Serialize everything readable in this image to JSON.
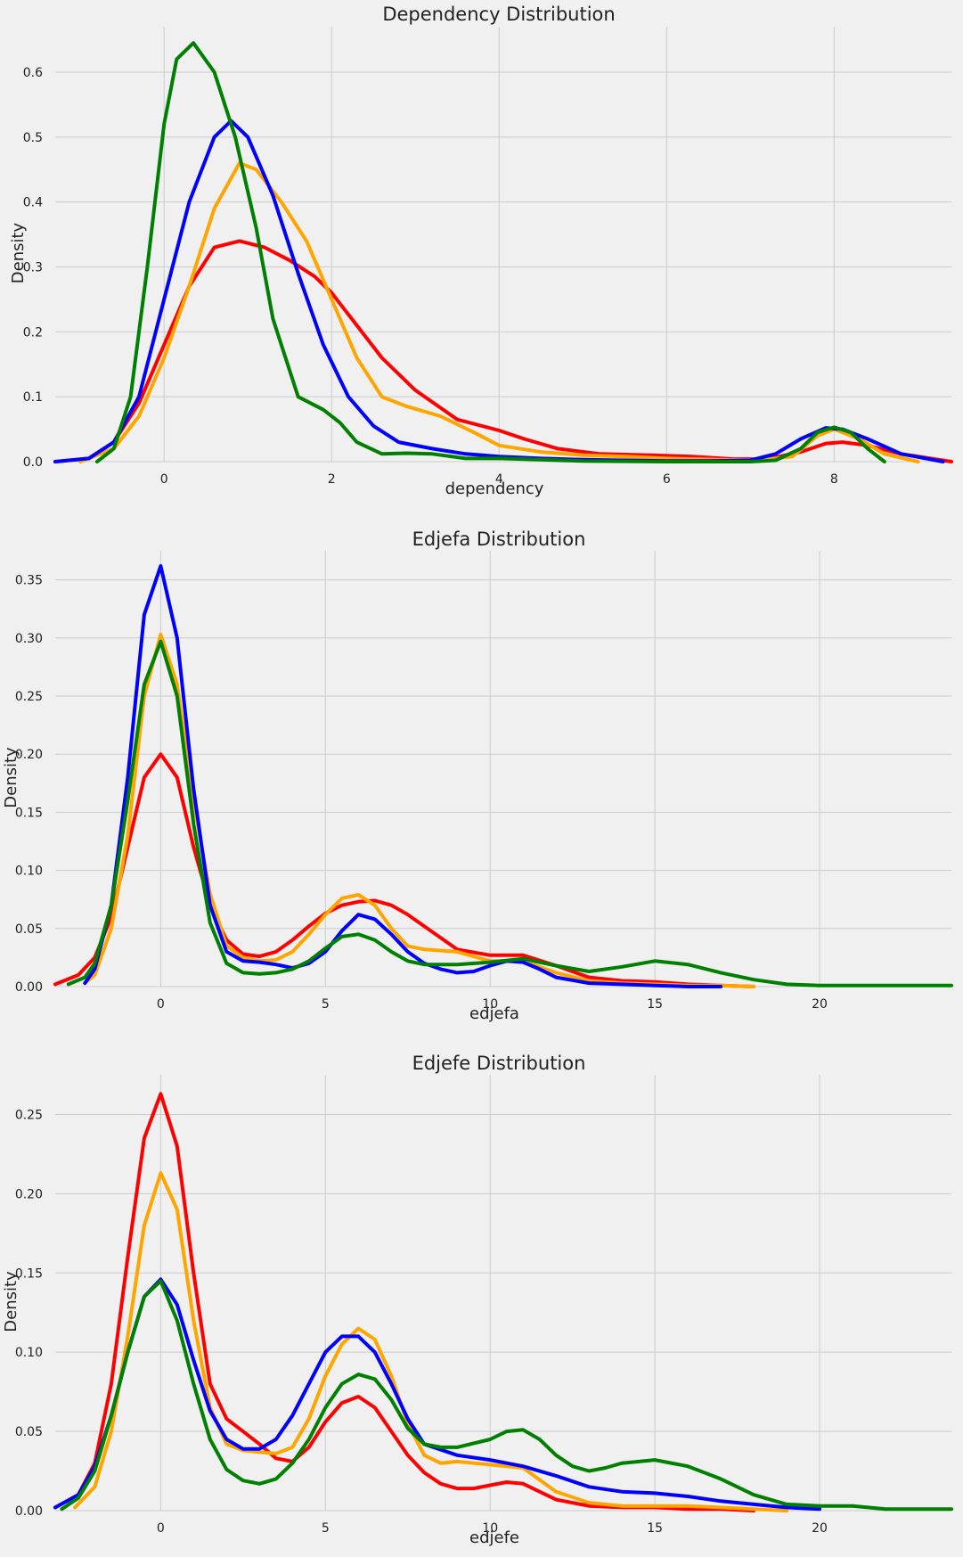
{
  "chart_data": [
    {
      "type": "line",
      "title": "Dependency Distribution",
      "xlabel": "dependency",
      "ylabel": "Density",
      "xlim": [
        -1.3,
        9.4
      ],
      "ylim": [
        0,
        0.67
      ],
      "xticks": [
        0,
        2,
        4,
        6,
        8
      ],
      "yticks": [
        0.0,
        0.1,
        0.2,
        0.3,
        0.4,
        0.5,
        0.6
      ],
      "ytick_labels": [
        "0.0",
        "0.1",
        "0.2",
        "0.3",
        "0.4",
        "0.5",
        "0.6"
      ],
      "grid": true,
      "series": [
        {
          "color": "#ff0000",
          "x": [
            -1.3,
            -0.9,
            -0.6,
            -0.3,
            0,
            0.3,
            0.6,
            0.9,
            1.2,
            1.5,
            1.8,
            2.0,
            2.3,
            2.6,
            3.0,
            3.5,
            4.0,
            4.3,
            4.7,
            5.2,
            5.8,
            6.3,
            6.8,
            7.2,
            7.6,
            7.9,
            8.1,
            8.4,
            8.8,
            9.4
          ],
          "y": [
            0,
            0.005,
            0.03,
            0.09,
            0.18,
            0.27,
            0.33,
            0.34,
            0.33,
            0.31,
            0.285,
            0.26,
            0.21,
            0.16,
            0.11,
            0.065,
            0.048,
            0.035,
            0.02,
            0.012,
            0.01,
            0.008,
            0.004,
            0.004,
            0.015,
            0.028,
            0.03,
            0.025,
            0.012,
            0
          ]
        },
        {
          "color": "#ffa500",
          "x": [
            -1.0,
            -0.6,
            -0.3,
            0,
            0.3,
            0.6,
            0.9,
            1.1,
            1.4,
            1.7,
            2.0,
            2.3,
            2.6,
            2.9,
            3.3,
            3.7,
            4.0,
            4.5,
            5.0,
            5.5,
            6.0,
            6.6,
            7.1,
            7.5,
            7.8,
            8.0,
            8.3,
            8.6,
            9.0
          ],
          "y": [
            0,
            0.02,
            0.07,
            0.16,
            0.27,
            0.39,
            0.46,
            0.45,
            0.4,
            0.34,
            0.25,
            0.16,
            0.1,
            0.085,
            0.07,
            0.045,
            0.025,
            0.015,
            0.01,
            0.008,
            0.005,
            0.003,
            0.002,
            0.008,
            0.04,
            0.05,
            0.035,
            0.012,
            0
          ]
        },
        {
          "color": "#0000ff",
          "x": [
            -1.3,
            -0.9,
            -0.6,
            -0.3,
            0,
            0.3,
            0.6,
            0.8,
            1.0,
            1.3,
            1.6,
            1.9,
            2.2,
            2.5,
            2.8,
            3.2,
            3.6,
            4.0,
            4.5,
            5.0,
            5.5,
            6.0,
            6.5,
            7.0,
            7.3,
            7.6,
            7.9,
            8.1,
            8.4,
            8.8,
            9.3
          ],
          "y": [
            0,
            0.005,
            0.03,
            0.1,
            0.25,
            0.4,
            0.5,
            0.525,
            0.5,
            0.41,
            0.29,
            0.18,
            0.1,
            0.055,
            0.03,
            0.02,
            0.012,
            0.008,
            0.005,
            0.003,
            0.002,
            0.001,
            0.001,
            0.002,
            0.012,
            0.035,
            0.052,
            0.05,
            0.035,
            0.012,
            0
          ]
        },
        {
          "color": "#008000",
          "x": [
            -0.8,
            -0.6,
            -0.4,
            -0.2,
            0,
            0.15,
            0.35,
            0.6,
            0.85,
            1.1,
            1.3,
            1.6,
            1.9,
            2.1,
            2.3,
            2.6,
            2.9,
            3.2,
            3.6,
            4.0,
            4.5,
            5.0,
            6.0,
            6.5,
            7.0,
            7.3,
            7.6,
            7.8,
            8.0,
            8.2,
            8.4,
            8.6
          ],
          "y": [
            0,
            0.02,
            0.1,
            0.3,
            0.52,
            0.62,
            0.645,
            0.6,
            0.5,
            0.36,
            0.22,
            0.1,
            0.08,
            0.06,
            0.03,
            0.012,
            0.013,
            0.012,
            0.005,
            0.005,
            0.003,
            0.001,
            0,
            0,
            0,
            0.002,
            0.02,
            0.045,
            0.053,
            0.045,
            0.02,
            0
          ]
        }
      ]
    },
    {
      "type": "line",
      "title": "Edjefa Distribution",
      "xlabel": "edjefa",
      "ylabel": "Density",
      "xlim": [
        -3.2,
        24
      ],
      "ylim": [
        0,
        0.375
      ],
      "xticks": [
        0,
        5,
        10,
        15,
        20,
        25
      ],
      "yticks": [
        0.0,
        0.05,
        0.1,
        0.15,
        0.2,
        0.25,
        0.3,
        0.35
      ],
      "ytick_labels": [
        "0.00",
        "0.05",
        "0.10",
        "0.15",
        "0.20",
        "0.25",
        "0.30",
        "0.35"
      ],
      "grid": true,
      "series": [
        {
          "color": "#ff0000",
          "x": [
            -3.2,
            -2.5,
            -2.0,
            -1.5,
            -1.0,
            -0.5,
            0,
            0.5,
            1.0,
            1.5,
            2.0,
            2.5,
            3.0,
            3.5,
            4.0,
            4.5,
            5.0,
            5.5,
            6.0,
            6.5,
            7.0,
            7.5,
            8.0,
            8.5,
            9.0,
            10.0,
            11.0,
            12.0,
            13.0,
            14.0,
            15.0,
            16.0,
            17.0,
            18.0
          ],
          "y": [
            0.002,
            0.01,
            0.025,
            0.06,
            0.12,
            0.18,
            0.2,
            0.18,
            0.12,
            0.07,
            0.04,
            0.028,
            0.026,
            0.03,
            0.04,
            0.052,
            0.063,
            0.07,
            0.073,
            0.074,
            0.07,
            0.062,
            0.052,
            0.042,
            0.032,
            0.027,
            0.027,
            0.018,
            0.008,
            0.005,
            0.004,
            0.002,
            0.001,
            0
          ]
        },
        {
          "color": "#ffa500",
          "x": [
            -2.3,
            -2.0,
            -1.5,
            -1.0,
            -0.5,
            0,
            0.5,
            1.0,
            1.5,
            2.0,
            2.5,
            3.0,
            3.5,
            4.0,
            4.5,
            5.0,
            5.5,
            6.0,
            6.5,
            7.0,
            7.5,
            8.0,
            9.0,
            10.0,
            11.0,
            12.0,
            13.0,
            14.0,
            15.0,
            16.0,
            17.0,
            18.0
          ],
          "y": [
            0.003,
            0.01,
            0.05,
            0.13,
            0.25,
            0.303,
            0.26,
            0.16,
            0.08,
            0.035,
            0.025,
            0.022,
            0.023,
            0.03,
            0.045,
            0.062,
            0.076,
            0.079,
            0.07,
            0.05,
            0.035,
            0.032,
            0.03,
            0.022,
            0.022,
            0.012,
            0.005,
            0.003,
            0.002,
            0.001,
            0.001,
            0
          ]
        },
        {
          "color": "#0000ff",
          "x": [
            -2.3,
            -2.0,
            -1.5,
            -1.0,
            -0.5,
            0,
            0.5,
            1.0,
            1.5,
            2.0,
            2.5,
            3.0,
            3.5,
            4.0,
            4.5,
            5.0,
            5.5,
            6.0,
            6.5,
            7.0,
            7.5,
            8.0,
            8.5,
            9.0,
            9.5,
            10.0,
            10.5,
            11.0,
            11.5,
            12.0,
            13.0,
            14.0,
            15.0,
            16.0,
            17.0
          ],
          "y": [
            0.003,
            0.015,
            0.07,
            0.18,
            0.32,
            0.362,
            0.3,
            0.17,
            0.07,
            0.03,
            0.022,
            0.021,
            0.019,
            0.016,
            0.02,
            0.03,
            0.048,
            0.062,
            0.058,
            0.045,
            0.03,
            0.02,
            0.015,
            0.012,
            0.013,
            0.018,
            0.022,
            0.021,
            0.015,
            0.008,
            0.003,
            0.002,
            0.001,
            0,
            0
          ]
        },
        {
          "color": "#008000",
          "x": [
            -2.8,
            -2.3,
            -2.0,
            -1.5,
            -1.0,
            -0.5,
            0,
            0.5,
            1.0,
            1.5,
            2.0,
            2.5,
            3.0,
            3.5,
            4.0,
            4.5,
            5.0,
            5.5,
            6.0,
            6.5,
            7.0,
            7.5,
            8.0,
            9.0,
            10.0,
            11.0,
            12.0,
            13.0,
            14.0,
            15.0,
            16.0,
            17.0,
            18.0,
            19.0,
            20.0,
            22.0,
            24.0
          ],
          "y": [
            0.002,
            0.008,
            0.02,
            0.07,
            0.16,
            0.26,
            0.297,
            0.25,
            0.14,
            0.055,
            0.02,
            0.012,
            0.011,
            0.012,
            0.015,
            0.022,
            0.033,
            0.043,
            0.045,
            0.04,
            0.03,
            0.022,
            0.019,
            0.019,
            0.021,
            0.024,
            0.018,
            0.013,
            0.017,
            0.022,
            0.019,
            0.012,
            0.006,
            0.002,
            0.001,
            0.001,
            0.001
          ]
        }
      ]
    },
    {
      "type": "line",
      "title": "Edjefe Distribution",
      "xlabel": "edjefe",
      "ylabel": "Density",
      "xlim": [
        -3.2,
        24
      ],
      "ylim": [
        0,
        0.275
      ],
      "xticks": [
        0,
        5,
        10,
        15,
        20,
        25
      ],
      "yticks": [
        0.0,
        0.05,
        0.1,
        0.15,
        0.2,
        0.25
      ],
      "ytick_labels": [
        "0.00",
        "0.05",
        "0.10",
        "0.15",
        "0.20",
        "0.25"
      ],
      "grid": true,
      "series": [
        {
          "color": "#ff0000",
          "x": [
            -3.2,
            -2.5,
            -2.0,
            -1.5,
            -1.0,
            -0.5,
            0,
            0.5,
            1.0,
            1.5,
            2.0,
            2.5,
            3.0,
            3.5,
            4.0,
            4.5,
            5.0,
            5.5,
            6.0,
            6.5,
            7.0,
            7.5,
            8.0,
            8.5,
            9.0,
            9.5,
            10.0,
            10.5,
            11.0,
            11.5,
            12.0,
            13.0,
            14.0,
            15.0,
            16.0,
            17.0,
            18.0
          ],
          "y": [
            0.002,
            0.01,
            0.03,
            0.08,
            0.16,
            0.235,
            0.263,
            0.23,
            0.15,
            0.08,
            0.058,
            0.05,
            0.042,
            0.033,
            0.031,
            0.04,
            0.056,
            0.068,
            0.072,
            0.065,
            0.05,
            0.035,
            0.024,
            0.017,
            0.014,
            0.014,
            0.016,
            0.018,
            0.017,
            0.012,
            0.007,
            0.003,
            0.002,
            0.002,
            0.001,
            0.001,
            0
          ]
        },
        {
          "color": "#ffa500",
          "x": [
            -2.6,
            -2.0,
            -1.5,
            -1.0,
            -0.5,
            0,
            0.5,
            1.0,
            1.5,
            2.0,
            2.5,
            3.0,
            3.5,
            4.0,
            4.5,
            5.0,
            5.5,
            6.0,
            6.5,
            7.0,
            7.5,
            8.0,
            8.5,
            9.0,
            10.0,
            11.0,
            12.0,
            13.0,
            14.0,
            15.0,
            16.0,
            17.0,
            18.0,
            19.0
          ],
          "y": [
            0.002,
            0.015,
            0.05,
            0.11,
            0.18,
            0.213,
            0.19,
            0.12,
            0.065,
            0.042,
            0.038,
            0.037,
            0.036,
            0.04,
            0.058,
            0.085,
            0.105,
            0.115,
            0.108,
            0.085,
            0.055,
            0.035,
            0.03,
            0.031,
            0.029,
            0.027,
            0.012,
            0.005,
            0.003,
            0.003,
            0.003,
            0.002,
            0.001,
            0
          ]
        },
        {
          "color": "#0000ff",
          "x": [
            -3.2,
            -2.5,
            -2.0,
            -1.5,
            -1.0,
            -0.5,
            0,
            0.5,
            1.0,
            1.5,
            2.0,
            2.5,
            3.0,
            3.5,
            4.0,
            4.5,
            5.0,
            5.5,
            6.0,
            6.5,
            7.0,
            7.5,
            8.0,
            9.0,
            10.0,
            11.0,
            12.0,
            13.0,
            14.0,
            15.0,
            16.0,
            17.0,
            18.0,
            19.0,
            20.0
          ],
          "y": [
            0.002,
            0.01,
            0.028,
            0.06,
            0.1,
            0.135,
            0.146,
            0.13,
            0.095,
            0.063,
            0.045,
            0.039,
            0.039,
            0.045,
            0.06,
            0.08,
            0.1,
            0.11,
            0.11,
            0.1,
            0.08,
            0.058,
            0.042,
            0.035,
            0.032,
            0.028,
            0.022,
            0.015,
            0.012,
            0.011,
            0.009,
            0.006,
            0.004,
            0.002,
            0.001
          ]
        },
        {
          "color": "#008000",
          "x": [
            -3.0,
            -2.5,
            -2.0,
            -1.5,
            -1.0,
            -0.5,
            0,
            0.5,
            1.0,
            1.5,
            2.0,
            2.5,
            3.0,
            3.5,
            4.0,
            4.5,
            5.0,
            5.5,
            6.0,
            6.5,
            7.0,
            7.5,
            8.0,
            8.5,
            9.0,
            10.0,
            10.5,
            11.0,
            11.5,
            12.0,
            12.5,
            13.0,
            13.5,
            14.0,
            15.0,
            16.0,
            17.0,
            18.0,
            19.0,
            20.0,
            21.0,
            22.0,
            24.0
          ],
          "y": [
            0.001,
            0.008,
            0.025,
            0.06,
            0.1,
            0.135,
            0.145,
            0.12,
            0.08,
            0.045,
            0.026,
            0.019,
            0.017,
            0.02,
            0.03,
            0.045,
            0.065,
            0.08,
            0.086,
            0.083,
            0.07,
            0.052,
            0.042,
            0.04,
            0.04,
            0.045,
            0.05,
            0.051,
            0.045,
            0.035,
            0.028,
            0.025,
            0.027,
            0.03,
            0.032,
            0.028,
            0.02,
            0.01,
            0.004,
            0.003,
            0.003,
            0.001,
            0.001
          ]
        }
      ]
    }
  ]
}
